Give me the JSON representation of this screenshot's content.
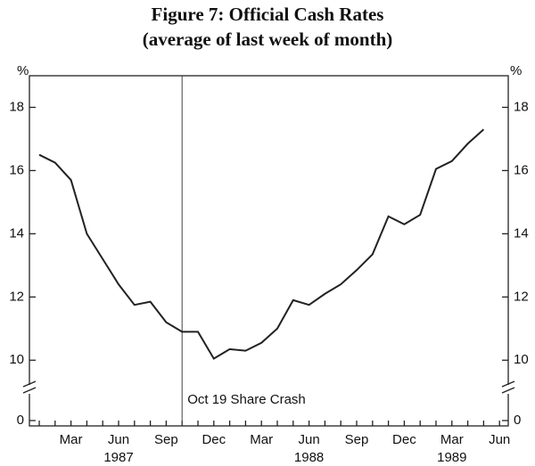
{
  "chart_data": {
    "type": "line",
    "title": "Figure 7:  Official Cash Rates",
    "subtitle": "(average of last week of month)",
    "y_unit": "%",
    "categories": [
      null,
      null,
      "Mar",
      null,
      null,
      "Jun",
      null,
      null,
      "Sep",
      null,
      null,
      "Dec",
      null,
      null,
      "Mar",
      null,
      null,
      "Jun",
      null,
      null,
      "Sep",
      null,
      null,
      "Dec",
      null,
      null,
      "Mar",
      null,
      null,
      "Jun"
    ],
    "years": [
      "1987",
      "1988",
      "1989"
    ],
    "series": [
      {
        "name": "Official cash rate",
        "color": "#222222",
        "values": [
          16.5,
          16.25,
          15.7,
          14.0,
          13.2,
          12.4,
          11.75,
          11.85,
          11.2,
          10.9,
          10.9,
          10.05,
          10.35,
          10.3,
          10.55,
          11.0,
          11.9,
          11.75,
          12.1,
          12.4,
          12.85,
          13.35,
          14.55,
          14.3,
          14.6,
          16.05,
          16.3,
          16.85,
          17.3,
          null
        ]
      }
    ],
    "ylim": [
      0,
      19
    ],
    "axis_break": [
      0,
      9.5
    ],
    "yticks": [
      0,
      10,
      12,
      14,
      16,
      18
    ],
    "annotation": "Oct 19 Share Crash",
    "grid": false
  }
}
